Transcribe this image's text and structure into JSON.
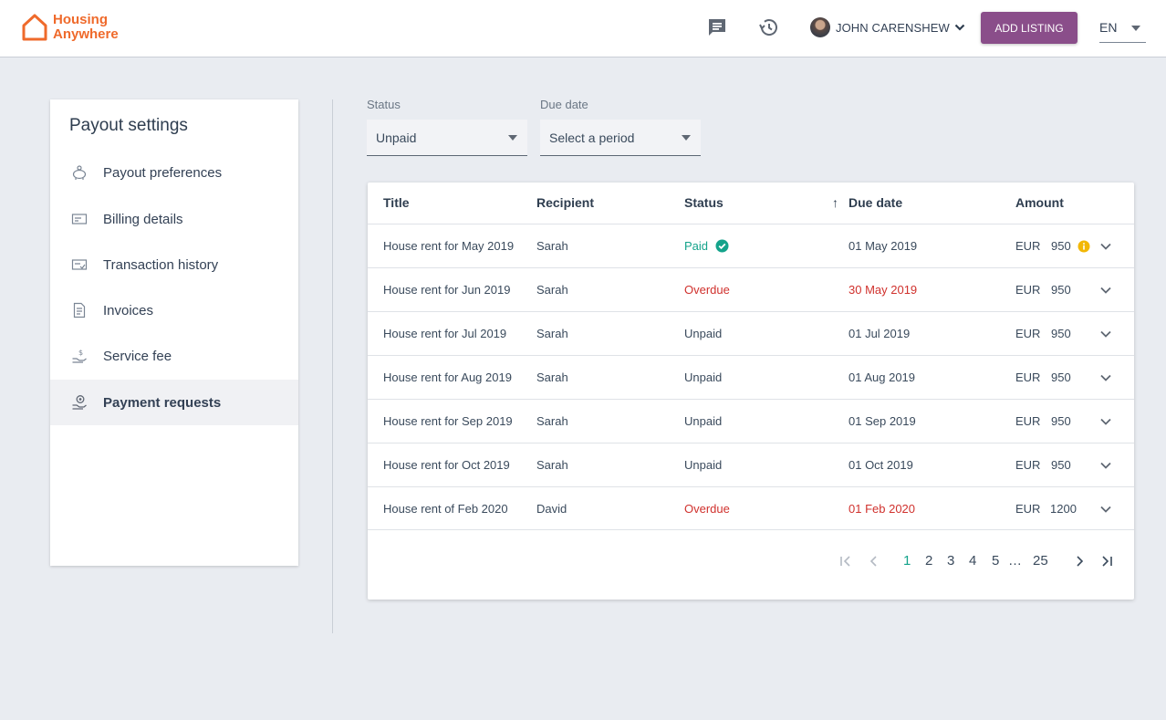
{
  "header": {
    "logo_line1": "Housing",
    "logo_line2": "Anywhere",
    "messages_icon": "chat-bubble-icon",
    "history_icon": "history-icon",
    "user_name": "JOHN CARENSHEW",
    "add_listing": "ADD LISTING",
    "language": "EN",
    "brand_color": "#ef6a2b",
    "button_color": "#8a4e8a"
  },
  "sidebar": {
    "title": "Payout settings",
    "items": [
      {
        "label": "Payout preferences",
        "icon": "piggy-bank-icon"
      },
      {
        "label": "Billing details",
        "icon": "card-icon"
      },
      {
        "label": "Transaction history",
        "icon": "card-check-icon"
      },
      {
        "label": "Invoices",
        "icon": "document-icon"
      },
      {
        "label": "Service fee",
        "icon": "hand-dollar-icon"
      },
      {
        "label": "Payment requests",
        "icon": "hand-coin-icon",
        "active": true
      }
    ]
  },
  "filters": {
    "status_label": "Status",
    "status_value": "Unpaid",
    "due_label": "Due date",
    "due_value": "Select a period"
  },
  "table": {
    "columns": [
      "Title",
      "Recipient",
      "Status",
      "Due date",
      "Amount"
    ],
    "sort_indicator": "↑",
    "rows": [
      {
        "title": "House rent for May 2019",
        "recipient": "Sarah",
        "status": "Paid",
        "status_type": "paid",
        "due": "01 May 2019",
        "due_overdue": false,
        "currency": "EUR",
        "amount": "950",
        "info": true
      },
      {
        "title": "House rent for Jun 2019",
        "recipient": "Sarah",
        "status": "Overdue",
        "status_type": "overdue",
        "due": "30 May 2019",
        "due_overdue": true,
        "currency": "EUR",
        "amount": "950",
        "info": false
      },
      {
        "title": "House rent for Jul 2019",
        "recipient": "Sarah",
        "status": "Unpaid",
        "status_type": "unpaid",
        "due": "01 Jul 2019",
        "due_overdue": false,
        "currency": "EUR",
        "amount": "950",
        "info": false
      },
      {
        "title": "House rent for Aug 2019",
        "recipient": "Sarah",
        "status": "Unpaid",
        "status_type": "unpaid",
        "due": "01 Aug 2019",
        "due_overdue": false,
        "currency": "EUR",
        "amount": "950",
        "info": false
      },
      {
        "title": "House rent for Sep 2019",
        "recipient": "Sarah",
        "status": "Unpaid",
        "status_type": "unpaid",
        "due": "01 Sep 2019",
        "due_overdue": false,
        "currency": "EUR",
        "amount": "950",
        "info": false
      },
      {
        "title": "House rent for Oct 2019",
        "recipient": "Sarah",
        "status": "Unpaid",
        "status_type": "unpaid",
        "due": "01 Oct 2019",
        "due_overdue": false,
        "currency": "EUR",
        "amount": "950",
        "info": false
      },
      {
        "title": "House rent of Feb 2020",
        "recipient": "David",
        "status": "Overdue",
        "status_type": "overdue",
        "due": "01 Feb 2020",
        "due_overdue": true,
        "currency": "EUR",
        "amount": "1200",
        "info": false
      }
    ]
  },
  "pagination": {
    "pages": [
      "1",
      "2",
      "3",
      "4",
      "5"
    ],
    "current": "1",
    "ellipsis": "…",
    "last": "25"
  },
  "colors": {
    "paid": "#14a38b",
    "overdue": "#d0312d",
    "info": "#f2b705"
  }
}
